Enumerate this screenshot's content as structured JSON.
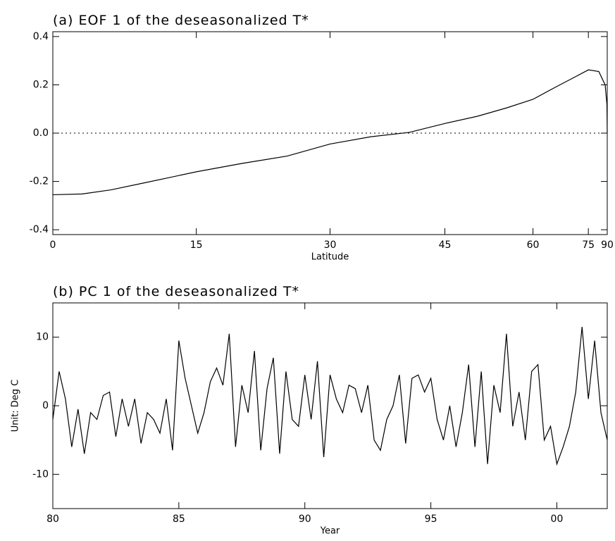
{
  "chart_data": [
    {
      "type": "line",
      "title": "(a) EOF 1 of the deseasonalized T*",
      "xlabel": "Latitude",
      "xscale": "sine",
      "color": "#000000",
      "x": [
        0,
        3,
        6,
        9,
        12,
        15,
        20,
        25,
        30,
        35,
        40,
        45,
        50,
        55,
        60,
        65,
        70,
        75,
        80,
        85,
        88,
        90
      ],
      "values": [
        -0.255,
        -0.252,
        -0.235,
        -0.21,
        -0.185,
        -0.16,
        -0.125,
        -0.095,
        -0.045,
        -0.015,
        0.003,
        0.04,
        0.07,
        0.105,
        0.14,
        0.19,
        0.23,
        0.262,
        0.255,
        0.2,
        0.12,
        0.0
      ],
      "xlim": [
        0,
        90
      ],
      "xticks": [
        0,
        15,
        30,
        45,
        60,
        75,
        90
      ],
      "ylim": [
        -0.42,
        0.42
      ],
      "yticks": [
        -0.4,
        -0.2,
        {
          "value": 0,
          "label": "0.0"
        },
        0.2,
        0.4
      ],
      "hline": 0
    },
    {
      "type": "line",
      "title": "(b) PC 1 of the deseasonalized T*",
      "xlabel": "Year",
      "ylabel": "Unit: Deg C",
      "xscale": "linear",
      "color": "#000000",
      "x": [
        80,
        80.25,
        80.5,
        80.75,
        81,
        81.25,
        81.5,
        81.75,
        82,
        82.25,
        82.5,
        82.75,
        83,
        83.25,
        83.5,
        83.75,
        84,
        84.25,
        84.5,
        84.75,
        85,
        85.25,
        85.5,
        85.75,
        86,
        86.25,
        86.5,
        86.75,
        87,
        87.25,
        87.5,
        87.75,
        88,
        88.25,
        88.5,
        88.75,
        89,
        89.25,
        89.5,
        89.75,
        90,
        90.25,
        90.5,
        90.75,
        91,
        91.25,
        91.5,
        91.75,
        92,
        92.25,
        92.5,
        92.75,
        93,
        93.25,
        93.5,
        93.75,
        94,
        94.25,
        94.5,
        94.75,
        95,
        95.25,
        95.5,
        95.75,
        96,
        96.25,
        96.5,
        96.75,
        97,
        97.25,
        97.5,
        97.75,
        98,
        98.25,
        98.5,
        98.75,
        99,
        99.25,
        99.5,
        99.75,
        100,
        100.25,
        100.5,
        100.75,
        101,
        101.25,
        101.5,
        101.75,
        102
      ],
      "values": [
        -2,
        5,
        1,
        -6,
        -0.5,
        -7,
        -1,
        -2,
        1.5,
        2,
        -4.5,
        1,
        -3,
        1,
        -5.5,
        -1,
        -2,
        -4,
        1,
        -6.5,
        9.5,
        4,
        0,
        -4,
        -1,
        3.5,
        5.5,
        3,
        10.5,
        -6,
        3,
        -1,
        8,
        -6.5,
        2.5,
        7,
        -7,
        5,
        -2,
        -3,
        4.5,
        -2,
        6.5,
        -7.5,
        4.5,
        1,
        -1,
        3,
        2.5,
        -1,
        3,
        -5,
        -6.5,
        -2,
        0,
        4.5,
        -5.5,
        4,
        4.5,
        2,
        4,
        -2,
        -5,
        0,
        -6,
        -1,
        6,
        -6,
        5,
        -8.5,
        3,
        -1,
        10.5,
        -3,
        2,
        -5,
        5,
        6,
        -5,
        -3,
        -8.5,
        -6,
        -3,
        2,
        11.5,
        1,
        9.5,
        -1,
        -5
      ],
      "xlim": [
        80,
        102
      ],
      "xticks": [
        80,
        85,
        90,
        95,
        {
          "value": 100,
          "label": "00"
        }
      ],
      "ylim": [
        -15,
        15
      ],
      "yticks": [
        -10,
        0,
        10
      ]
    }
  ]
}
